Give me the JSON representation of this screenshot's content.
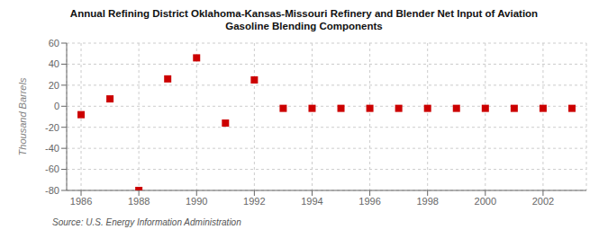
{
  "chart_data": {
    "type": "scatter",
    "title": "Annual Refining District Oklahoma-Kansas-Missouri Refinery and Blender Net Input of Aviation\nGasoline Blending Components",
    "y_label": "Thousand Barrels",
    "annotations": [
      "Source: U.S. Energy Information Administration"
    ],
    "x": [
      1986,
      1987,
      1988,
      1989,
      1990,
      1991,
      1992,
      1993,
      1994,
      1995,
      1996,
      1997,
      1998,
      1999,
      2000,
      2001,
      2002,
      2003
    ],
    "values": [
      -8,
      7,
      -80,
      26,
      46,
      -16,
      25,
      -2,
      -2,
      -2,
      -2,
      -2,
      -2,
      -2,
      -2,
      -2,
      -2,
      -2
    ],
    "color": "#cc0000",
    "marker": "square",
    "xlim": [
      1985.5,
      2003.5
    ],
    "ylim": [
      -80,
      60
    ],
    "xticks": [
      1986,
      1988,
      1990,
      1992,
      1994,
      1996,
      1998,
      2000,
      2002
    ],
    "yticks": [
      -80,
      -60,
      -40,
      -20,
      0,
      20,
      40,
      60
    ],
    "grid": true
  }
}
